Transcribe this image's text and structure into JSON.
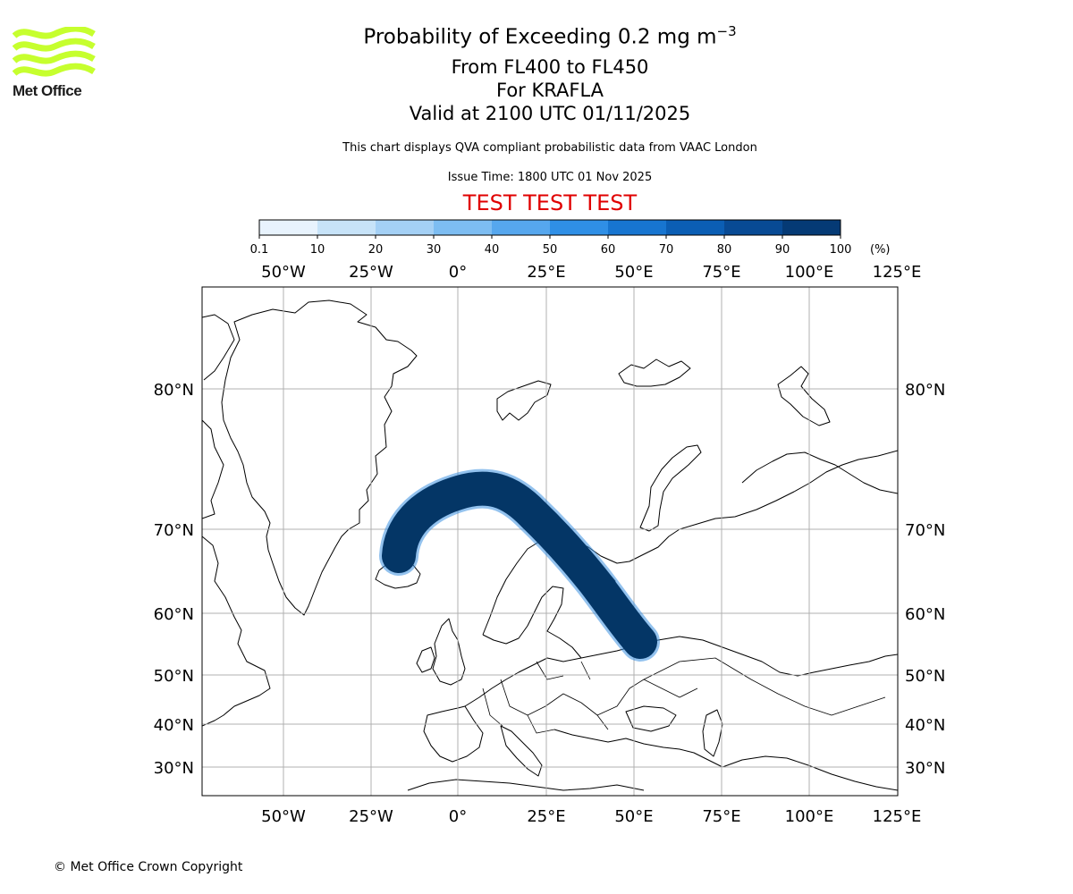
{
  "logo": {
    "text": "Met Office"
  },
  "header": {
    "title_main": "Probability of Exceeding 0.2 mg m",
    "title_sup": "−3",
    "levels": "From FL400 to FL450",
    "volcano": "For KRAFLA",
    "valid": "Valid at 2100 UTC 01/11/2025",
    "note": "This chart displays QVA compliant probabilistic data from VAAC London",
    "issue": "Issue Time: 1800 UTC 01 Nov 2025",
    "test_banner": "TEST TEST TEST"
  },
  "colorbar": {
    "ticks": [
      "0.1",
      "10",
      "20",
      "30",
      "40",
      "50",
      "60",
      "70",
      "80",
      "90",
      "100"
    ],
    "unit": "(%)",
    "colors": [
      "#e8f3fd",
      "#c7e3f8",
      "#a4d0f5",
      "#7dbdf2",
      "#56a7ee",
      "#2f8fe6",
      "#1775d0",
      "#0b5eb4",
      "#084a94",
      "#053a75",
      "#032a57"
    ]
  },
  "map": {
    "lon_ticks": [
      "50°W",
      "25°W",
      "0°",
      "25°E",
      "50°E",
      "75°E",
      "100°E",
      "125°E"
    ],
    "lat_ticks": [
      "80°N",
      "70°N",
      "60°N",
      "50°N",
      "40°N",
      "30°N"
    ],
    "plume_color": "#043666"
  },
  "footer": {
    "copyright": "© Met Office Crown Copyright"
  }
}
